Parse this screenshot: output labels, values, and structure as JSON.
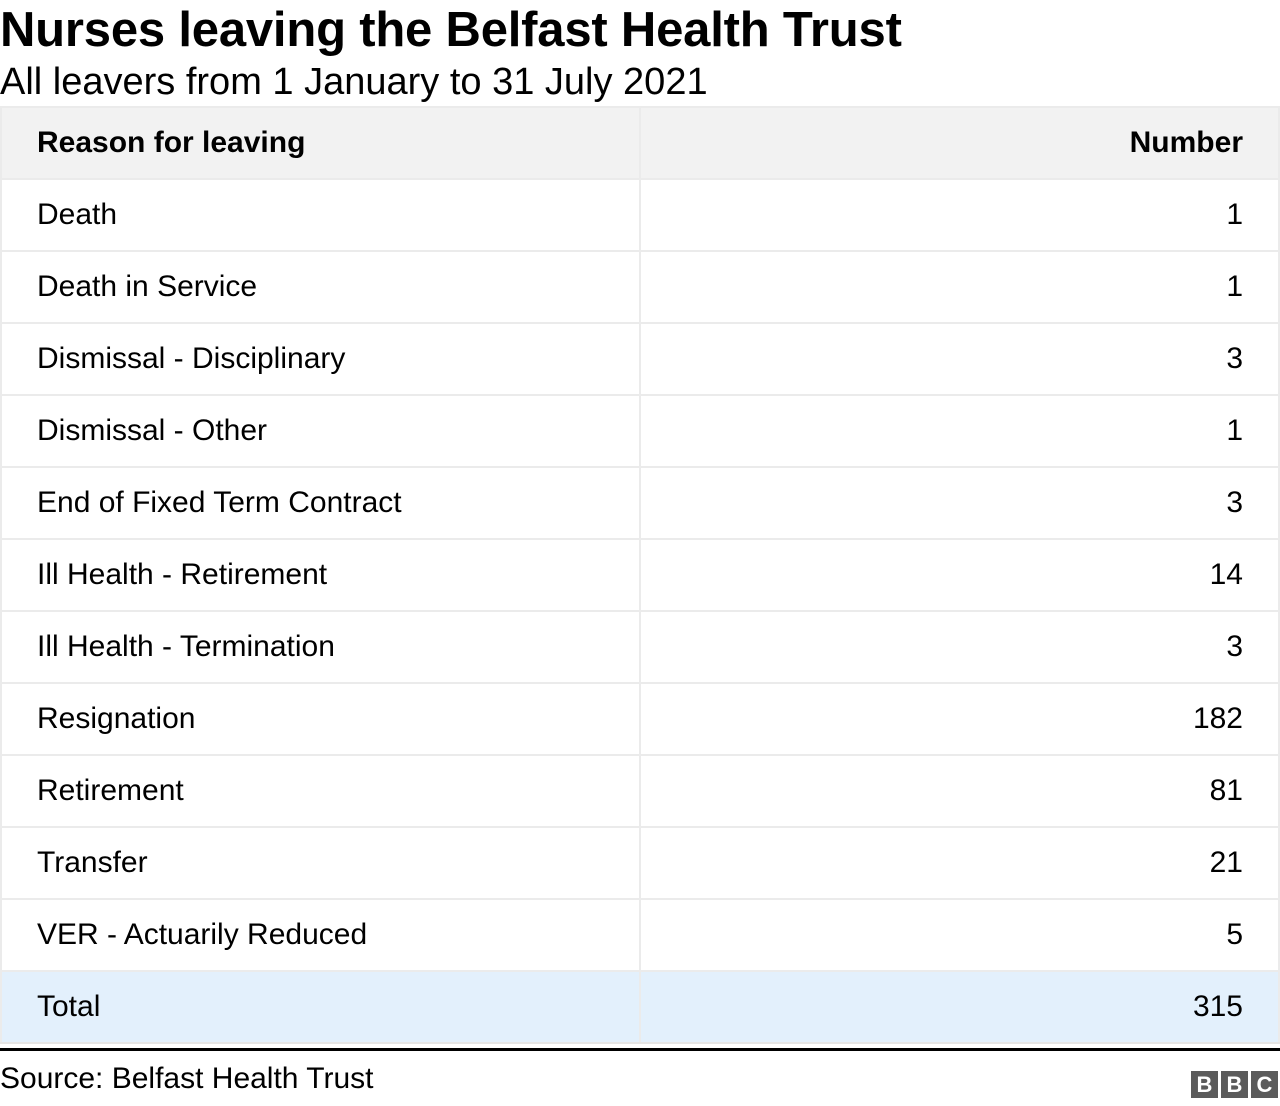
{
  "header": {
    "title": "Nurses leaving the Belfast Health Trust",
    "subtitle": "All leavers from 1 January to 31 July 2021"
  },
  "table": {
    "columns": [
      "Reason for leaving",
      "Number"
    ],
    "rows": [
      {
        "reason": "Death",
        "number": "1"
      },
      {
        "reason": "Death in Service",
        "number": "1"
      },
      {
        "reason": "Dismissal - Disciplinary",
        "number": "3"
      },
      {
        "reason": "Dismissal - Other",
        "number": "1"
      },
      {
        "reason": "End of Fixed Term Contract",
        "number": "3"
      },
      {
        "reason": "Ill Health - Retirement",
        "number": "14"
      },
      {
        "reason": "Ill Health - Termination",
        "number": "3"
      },
      {
        "reason": "Resignation",
        "number": "182"
      },
      {
        "reason": "Retirement",
        "number": "81"
      },
      {
        "reason": "Transfer",
        "number": "21"
      },
      {
        "reason": "VER - Actuarily Reduced",
        "number": "5"
      }
    ],
    "total": {
      "reason": "Total",
      "number": "315"
    }
  },
  "footer": {
    "source": "Source: Belfast Health Trust",
    "logo": [
      "B",
      "B",
      "C"
    ]
  },
  "colors": {
    "header_bg": "#f2f2f2",
    "total_bg": "#e3f0fc",
    "logo_bg": "#5b5b5b"
  },
  "chart_data": {
    "type": "table",
    "title": "Nurses leaving the Belfast Health Trust",
    "subtitle": "All leavers from 1 January to 31 July 2021",
    "columns": [
      "Reason for leaving",
      "Number"
    ],
    "categories": [
      "Death",
      "Death in Service",
      "Dismissal - Disciplinary",
      "Dismissal - Other",
      "End of Fixed Term Contract",
      "Ill Health - Retirement",
      "Ill Health - Termination",
      "Resignation",
      "Retirement",
      "Transfer",
      "VER - Actuarily Reduced"
    ],
    "values": [
      1,
      1,
      3,
      1,
      3,
      14,
      3,
      182,
      81,
      21,
      5
    ],
    "total": 315,
    "source": "Source: Belfast Health Trust"
  }
}
